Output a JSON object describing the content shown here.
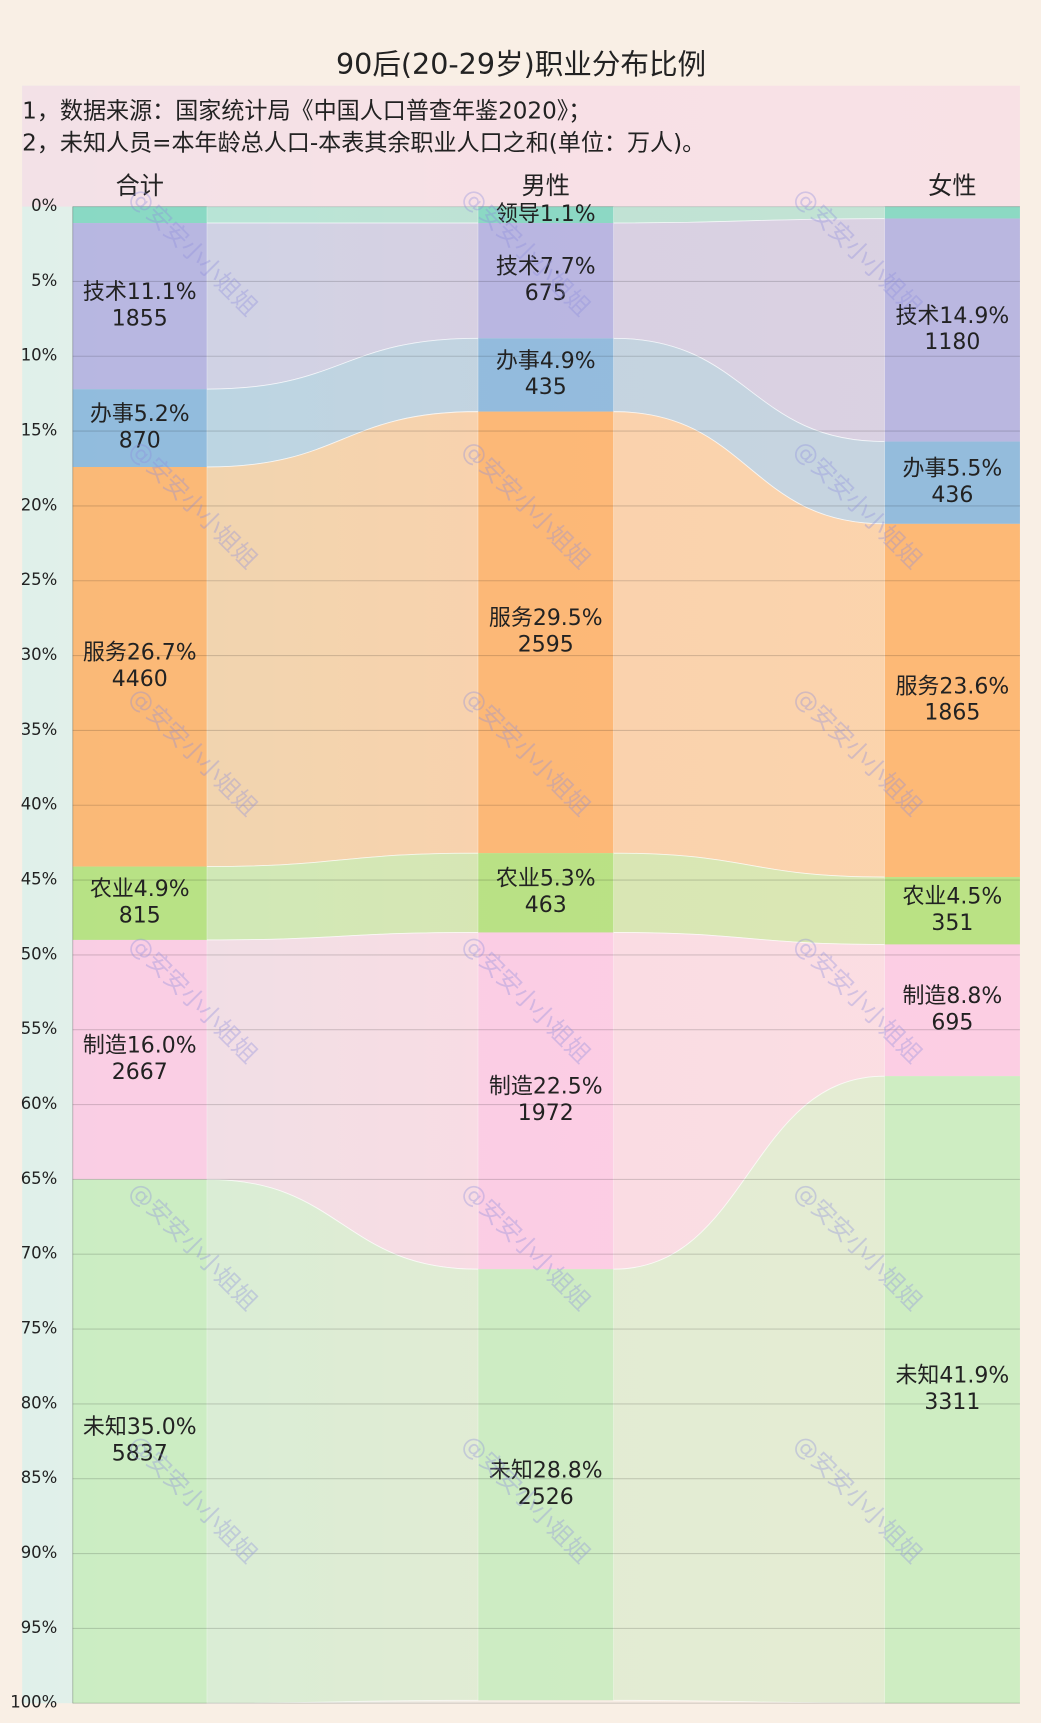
{
  "chart_data": {
    "type": "alluvial",
    "title": "90后(20-29岁)职业分布比例",
    "notes": [
      "1，数据来源：国家统计局《中国人口普查年鉴2020》；",
      "2，未知人员=本年龄总人口-本表其余职业人口之和(单位：万人)。"
    ],
    "watermark": "@安安小小姐姐",
    "categories": [
      "合计",
      "男性",
      "女性"
    ],
    "ylim": [
      0,
      100
    ],
    "yticks": [
      {
        "value": 0,
        "label": "0%"
      },
      {
        "value": 5,
        "label": "5%"
      },
      {
        "value": 10,
        "label": "10%"
      },
      {
        "value": 15,
        "label": "15%"
      },
      {
        "value": 20,
        "label": "20%"
      },
      {
        "value": 25,
        "label": "25%"
      },
      {
        "value": 30,
        "label": "30%"
      },
      {
        "value": 35,
        "label": "35%"
      },
      {
        "value": 40,
        "label": "40%"
      },
      {
        "value": 45,
        "label": "45%"
      },
      {
        "value": 50,
        "label": "50%"
      },
      {
        "value": 55,
        "label": "55%"
      },
      {
        "value": 60,
        "label": "60%"
      },
      {
        "value": 65,
        "label": "65%"
      },
      {
        "value": 70,
        "label": "70%"
      },
      {
        "value": 75,
        "label": "75%"
      },
      {
        "value": 80,
        "label": "80%"
      },
      {
        "value": 85,
        "label": "85%"
      },
      {
        "value": 90,
        "label": "90%"
      },
      {
        "value": 95,
        "label": "95%"
      },
      {
        "value": 100,
        "label": "100%"
      }
    ],
    "grid": true,
    "series": [
      {
        "name": "领导",
        "color": "#7fd6c0",
        "values": [
          1.1,
          1.1,
          0.8
        ],
        "value_labels": [
          null,
          "1.1%",
          null
        ],
        "counts": [
          null,
          null,
          null
        ]
      },
      {
        "name": "技术",
        "color": "#b3b0e0",
        "values": [
          11.1,
          7.7,
          14.9
        ],
        "value_labels": [
          "11.1%",
          "7.7%",
          "14.9%"
        ],
        "counts": [
          1855,
          675,
          1180
        ]
      },
      {
        "name": "办事",
        "color": "#88b6dc",
        "values": [
          5.2,
          4.9,
          5.5
        ],
        "value_labels": [
          "5.2%",
          "4.9%",
          "5.5%"
        ],
        "counts": [
          870,
          435,
          436
        ]
      },
      {
        "name": "服务",
        "color": "#fdb36a",
        "values": [
          26.7,
          29.5,
          23.6
        ],
        "value_labels": [
          "26.7%",
          "29.5%",
          "23.6%"
        ],
        "counts": [
          4460,
          2595,
          1865
        ]
      },
      {
        "name": "农业",
        "color": "#b3e07a",
        "values": [
          4.9,
          5.3,
          4.5
        ],
        "value_labels": [
          "4.9%",
          "5.3%",
          "4.5%"
        ],
        "counts": [
          815,
          463,
          351
        ]
      },
      {
        "name": "制造",
        "color": "#fccae3",
        "values": [
          16.0,
          22.5,
          8.8
        ],
        "value_labels": [
          "16.0%",
          "22.5%",
          "8.8%"
        ],
        "counts": [
          2667,
          1972,
          695
        ]
      },
      {
        "name": "未知",
        "color": "#c9ecbf",
        "values": [
          35.0,
          28.8,
          41.9
        ],
        "value_labels": [
          "35.0%",
          "28.8%",
          "41.9%"
        ],
        "counts": [
          5837,
          2526,
          3311
        ]
      }
    ]
  }
}
